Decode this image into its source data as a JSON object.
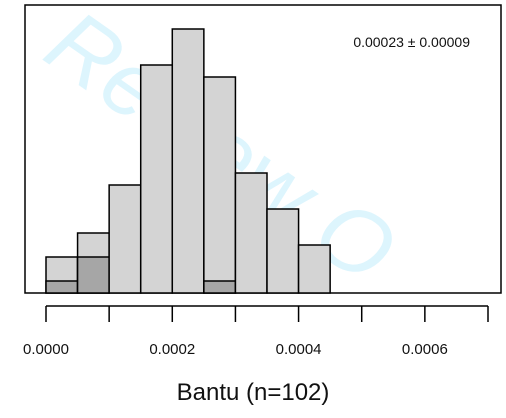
{
  "chart_data": {
    "type": "bar",
    "subtype": "histogram",
    "bin_width": 5e-05,
    "bins": [
      {
        "start": 0.0,
        "total": 1.5,
        "highlight": 0.5
      },
      {
        "start": 5e-05,
        "total": 2.5,
        "highlight": 1.5
      },
      {
        "start": 0.0001,
        "total": 4.5,
        "highlight": 0
      },
      {
        "start": 0.00015,
        "total": 9.5,
        "highlight": 0
      },
      {
        "start": 0.0002,
        "total": 11.0,
        "highlight": 0
      },
      {
        "start": 0.00025,
        "total": 9.0,
        "highlight": 0.5
      },
      {
        "start": 0.0003,
        "total": 5.0,
        "highlight": 0
      },
      {
        "start": 0.00035,
        "total": 3.5,
        "highlight": 0
      },
      {
        "start": 0.0004,
        "total": 2.0,
        "highlight": 0
      }
    ],
    "xlim": [
      0.0,
      0.0007
    ],
    "ylim": [
      0,
      11.5
    ],
    "xticks": [
      0.0,
      0.0001,
      0.0002,
      0.0003,
      0.0004,
      0.0005,
      0.0006,
      0.0007
    ],
    "xtick_labels": [
      {
        "value": 0.0,
        "label": "0.0000"
      },
      {
        "value": 0.0002,
        "label": "0.0002"
      },
      {
        "value": 0.0004,
        "label": "0.0004"
      },
      {
        "value": 0.0006,
        "label": "0.0006"
      }
    ],
    "xlabel": "Bantu (n=102)",
    "ylabel": "",
    "annotation": "0.00023 ± 0.00009",
    "colors": {
      "bar": "#d4d4d4",
      "highlight": "#a6a6a6",
      "edge": "#000000"
    },
    "grid": false
  },
  "watermark": {
    "text": "Review O",
    "color": "#00b4f0"
  }
}
